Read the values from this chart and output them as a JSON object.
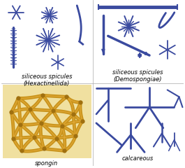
{
  "background_color": "#ffffff",
  "labels": {
    "top_left": "siliceous spicules\n(Hexactinellida)",
    "top_right": "siliceous spicules\n(Demospongiae)",
    "bottom_left": "spongin",
    "bottom_right": "calcareous"
  },
  "spicule_color": "#3a4a9f",
  "spongin_fiber_color": "#c8921a",
  "spongin_bg": "#f0e0a0",
  "label_fontsize": 6.0,
  "fig_width": 2.65,
  "fig_height": 2.4
}
